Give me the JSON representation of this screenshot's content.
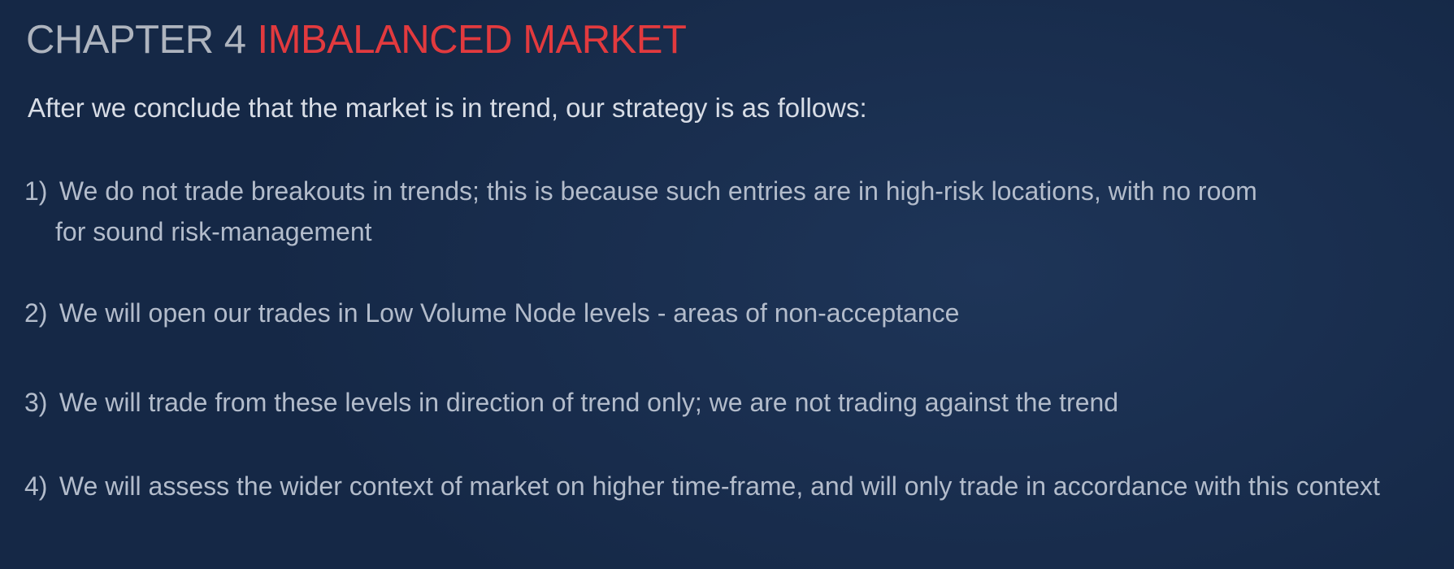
{
  "title": {
    "chapter": "CHAPTER 4",
    "topic": "IMBALANCED MARKET"
  },
  "intro": "After we conclude that the market is in trend, our strategy is as follows:",
  "items": [
    {
      "num": "1)",
      "text": "We do not trade breakouts in trends; this is because such entries are in high-risk locations, with no room",
      "cont": "for sound risk-management"
    },
    {
      "num": "2)",
      "text": "We will open our trades in Low Volume Node levels - areas of non-acceptance"
    },
    {
      "num": "3)",
      "text": "We will trade from these levels in direction of trend only; we are not trading against the trend"
    },
    {
      "num": "4)",
      "text": "We will assess the wider context of market on higher time-frame, and will only trade in accordance with this context"
    }
  ],
  "colors": {
    "background": "#1a2f50",
    "chapter": "#aeb4be",
    "topic": "#e23a3e",
    "intro": "#d8dde6",
    "body_text": "#b3bccb"
  }
}
